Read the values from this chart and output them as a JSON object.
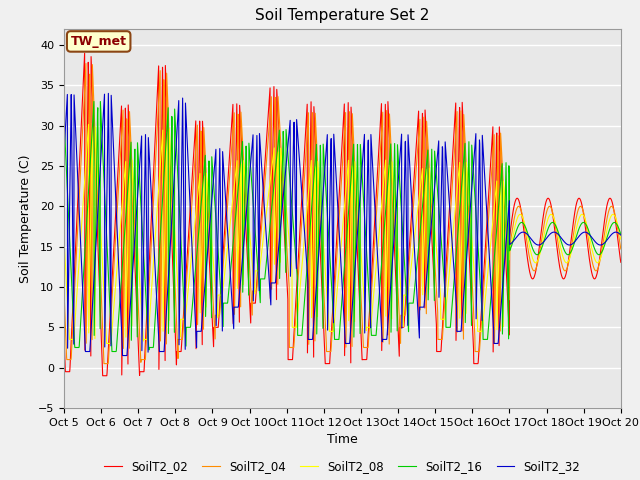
{
  "title": "Soil Temperature Set 2",
  "xlabel": "Time",
  "ylabel": "Soil Temperature (C)",
  "ylim": [
    -5,
    42
  ],
  "colors": {
    "SoilT2_02": "#FF0000",
    "SoilT2_04": "#FF8C00",
    "SoilT2_08": "#FFFF00",
    "SoilT2_16": "#00CC00",
    "SoilT2_32": "#0000CC"
  },
  "annotation_text": "TW_met",
  "series_names": [
    "SoilT2_02",
    "SoilT2_04",
    "SoilT2_08",
    "SoilT2_16",
    "SoilT2_32"
  ],
  "depths_cm": [
    2,
    4,
    8,
    16,
    32
  ],
  "xtick_labels": [
    "Oct 5",
    "Oct 6",
    "Oct 7",
    "Oct 8",
    "Oct 9",
    "Oct 10",
    "Oct 11",
    "Oct 12",
    "Oct 13",
    "Oct 14",
    "Oct 15",
    "Oct 16",
    "Oct 17",
    "Oct 18",
    "Oct 19",
    "Oct 20"
  ],
  "title_fontsize": 11,
  "bg_color": "#E8E8E8",
  "fig_color": "#F0F0F0",
  "linewidth": 0.8,
  "day_peaks": [
    39,
    33,
    38,
    31,
    33,
    35,
    33,
    33,
    33,
    32,
    33,
    30
  ],
  "day_mins": [
    -0.5,
    -1.0,
    -0.5,
    2.0,
    5.0,
    8.0,
    1.0,
    0.5,
    1.0,
    5.0,
    2.0,
    0.5
  ],
  "transition_day": 12.0,
  "late_base": 16.0,
  "late_amps": [
    5.0,
    4.0,
    3.0,
    2.0,
    0.8
  ],
  "late_freq": 1.2
}
